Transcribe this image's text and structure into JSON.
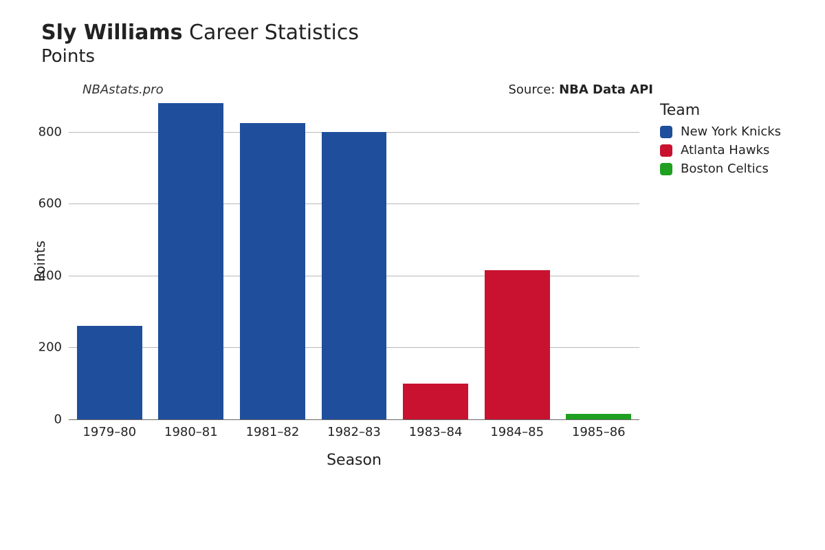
{
  "title": {
    "bold_part": "Sly Williams",
    "rest_part": " Career Statistics",
    "subtitle": "Points",
    "fontsize_main": 30,
    "fontsize_sub": 26
  },
  "annotation": {
    "left_text": "NBAstats.pro",
    "right_prefix": "Source: ",
    "right_bold": "NBA Data API",
    "fontsize": 18
  },
  "chart": {
    "type": "bar",
    "xlabel": "Season",
    "ylabel": "Points",
    "xlabel_fontsize": 22,
    "ylabel_fontsize": 20,
    "background_color": "#ffffff",
    "grid_color_major": "#b8b8b8",
    "grid_color_zero": "#666666",
    "bar_width": 0.8,
    "ylim": [
      0,
      880
    ],
    "yticks": [
      0,
      200,
      400,
      600,
      800
    ],
    "tick_fontsize": 18,
    "categories": [
      "1979–80",
      "1980–81",
      "1981–82",
      "1982–83",
      "1983–84",
      "1984–85",
      "1985–86"
    ],
    "values": [
      260,
      880,
      825,
      800,
      100,
      415,
      15
    ],
    "bar_colors": [
      "#1f4e9c",
      "#1f4e9c",
      "#1f4e9c",
      "#1f4e9c",
      "#c81230",
      "#c81230",
      "#20a020"
    ]
  },
  "legend": {
    "title": "Team",
    "title_fontsize": 22,
    "item_fontsize": 18,
    "items": [
      {
        "label": "New York Knicks",
        "color": "#1f4e9c"
      },
      {
        "label": "Atlanta Hawks",
        "color": "#c81230"
      },
      {
        "label": "Boston Celtics",
        "color": "#20a020"
      }
    ]
  }
}
